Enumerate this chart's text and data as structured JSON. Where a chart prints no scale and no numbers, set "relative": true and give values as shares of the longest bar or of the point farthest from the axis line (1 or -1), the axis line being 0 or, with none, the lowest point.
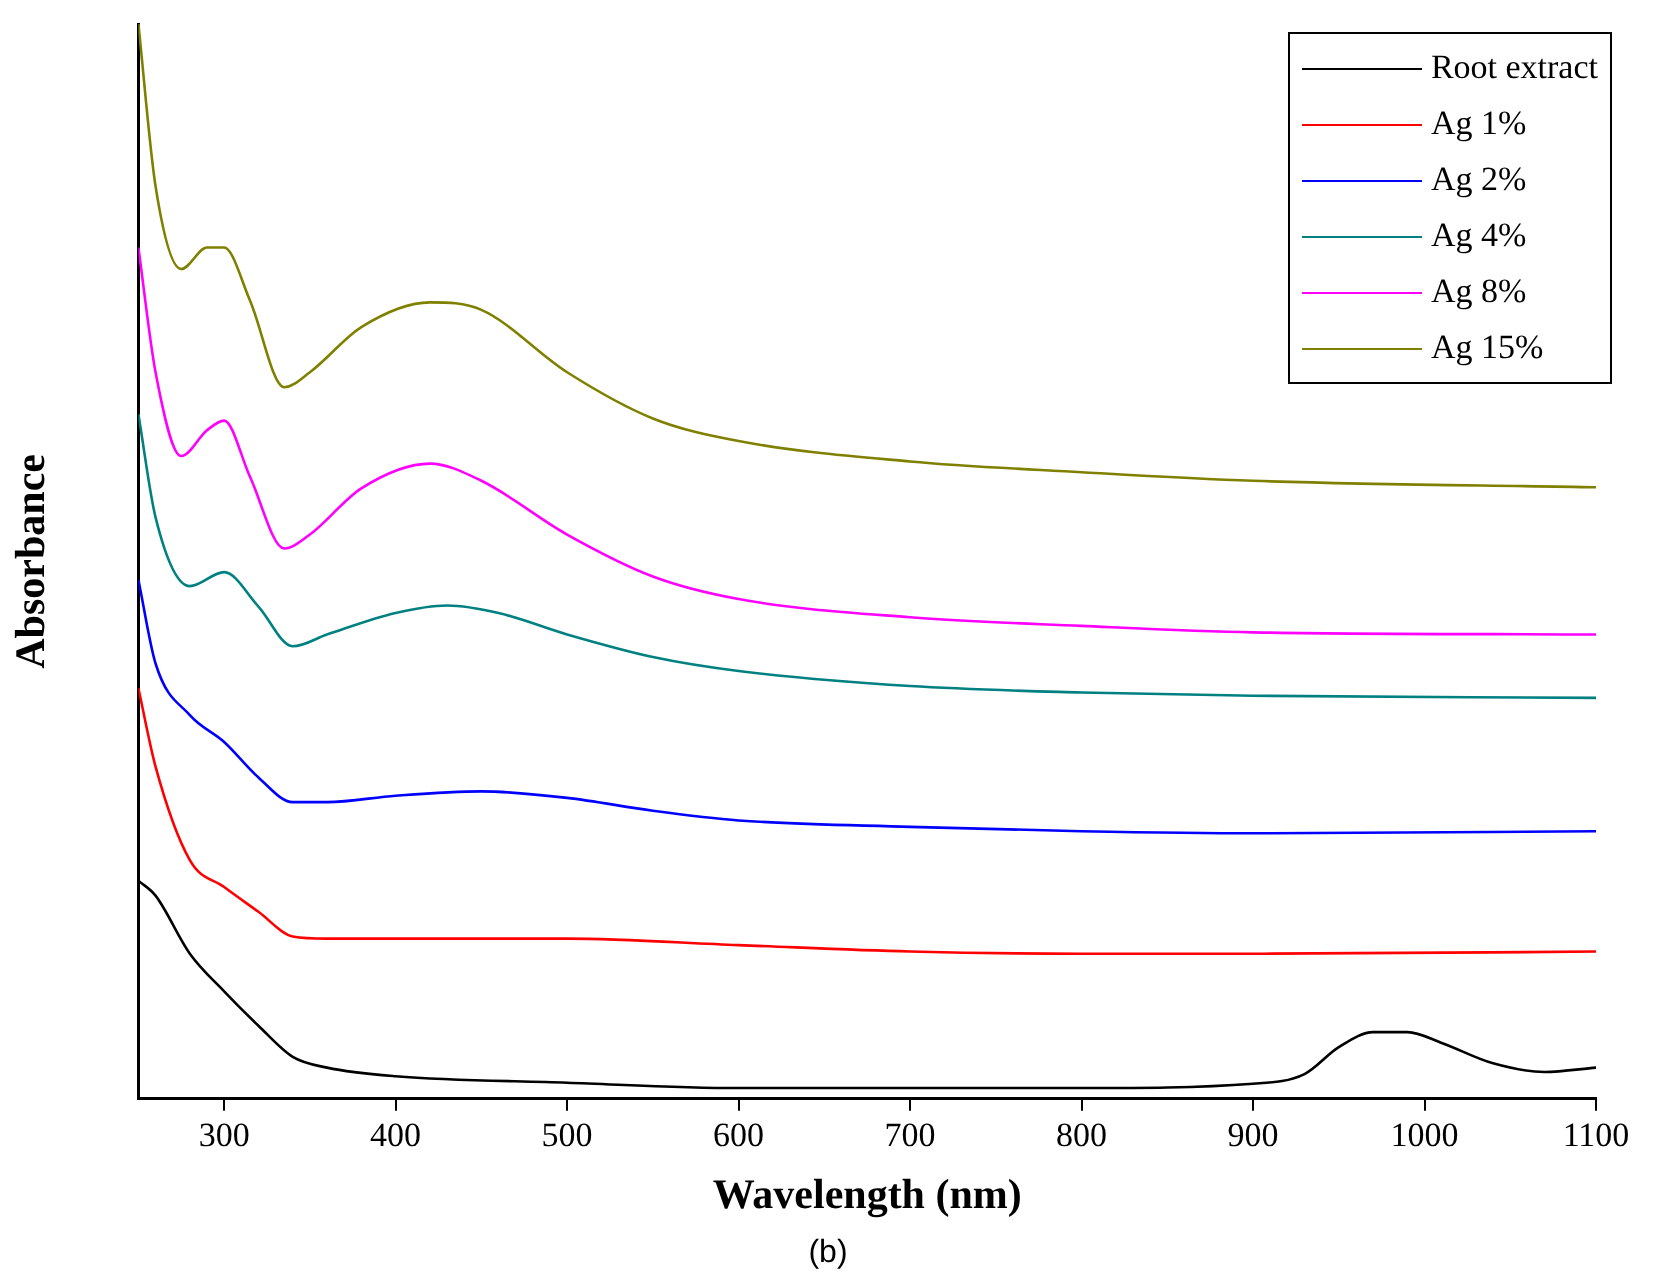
{
  "chart_data": {
    "type": "line",
    "relative": true,
    "xlabel": "Wavelength (nm)",
    "ylabel": "Absorbance",
    "xlim": [
      250,
      1100
    ],
    "xticks": [
      300,
      400,
      500,
      600,
      700,
      800,
      900,
      1000,
      1100
    ],
    "grid": false,
    "legend": "top right",
    "marker": "none",
    "line_style": "solid",
    "annotations": [
      "(b)"
    ],
    "series": [
      {
        "name": "Root extract",
        "color": "#000000",
        "x": [
          250,
          260,
          280,
          300,
          320,
          340,
          360,
          400,
          500,
          600,
          700,
          800,
          900,
          930,
          950,
          970,
          990,
          1010,
          1040,
          1070,
          1100
        ],
        "values": [
          0.203,
          0.189,
          0.135,
          0.1,
          0.068,
          0.039,
          0.029,
          0.021,
          0.015,
          0.01,
          0.01,
          0.01,
          0.014,
          0.023,
          0.048,
          0.062,
          0.062,
          0.052,
          0.033,
          0.025,
          0.029
        ]
      },
      {
        "name": "Ag 1%",
        "color": "#ff0000",
        "x": [
          250,
          260,
          280,
          300,
          320,
          340,
          360,
          400,
          500,
          600,
          700,
          800,
          900,
          1100
        ],
        "values": [
          0.382,
          0.309,
          0.222,
          0.197,
          0.174,
          0.151,
          0.149,
          0.149,
          0.149,
          0.143,
          0.137,
          0.135,
          0.135,
          0.137
        ]
      },
      {
        "name": "Ag 2%",
        "color": "#0000ff",
        "x": [
          250,
          260,
          280,
          300,
          320,
          340,
          360,
          400,
          450,
          500,
          550,
          600,
          700,
          800,
          900,
          1100
        ],
        "values": [
          0.483,
          0.405,
          0.357,
          0.332,
          0.299,
          0.276,
          0.276,
          0.282,
          0.286,
          0.28,
          0.268,
          0.259,
          0.253,
          0.249,
          0.247,
          0.249
        ]
      },
      {
        "name": "Ag 4%",
        "color": "#008080",
        "x": [
          250,
          260,
          280,
          300,
          320,
          340,
          360,
          400,
          430,
          460,
          500,
          550,
          600,
          700,
          800,
          900,
          1100
        ],
        "values": [
          0.637,
          0.541,
          0.477,
          0.49,
          0.458,
          0.421,
          0.432,
          0.452,
          0.459,
          0.452,
          0.432,
          0.411,
          0.398,
          0.384,
          0.378,
          0.375,
          0.373
        ]
      },
      {
        "name": "Ag 8%",
        "color": "#ff00ff",
        "x": [
          250,
          260,
          275,
          290,
          300,
          315,
          335,
          350,
          380,
          420,
          450,
          500,
          550,
          600,
          700,
          800,
          900,
          1100
        ],
        "values": [
          0.792,
          0.676,
          0.598,
          0.622,
          0.631,
          0.579,
          0.512,
          0.525,
          0.568,
          0.591,
          0.575,
          0.525,
          0.486,
          0.465,
          0.448,
          0.44,
          0.434,
          0.432
        ]
      },
      {
        "name": "Ag 15%",
        "color": "#808000",
        "x": [
          250,
          260,
          275,
          290,
          300,
          315,
          335,
          350,
          380,
          420,
          450,
          500,
          550,
          600,
          700,
          800,
          900,
          1100
        ],
        "values": [
          1.0,
          0.849,
          0.772,
          0.792,
          0.792,
          0.743,
          0.662,
          0.676,
          0.718,
          0.741,
          0.734,
          0.676,
          0.633,
          0.612,
          0.593,
          0.583,
          0.575,
          0.569
        ]
      }
    ]
  }
}
